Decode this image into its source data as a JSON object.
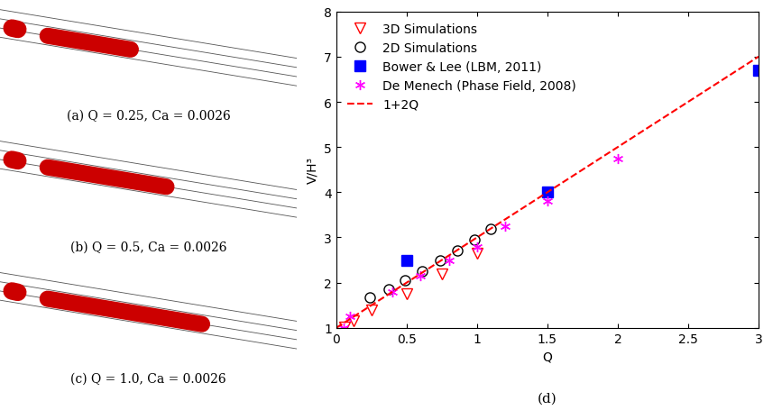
{
  "panels": [
    {
      "caption": "(a) Q = 0.25, Ca = 0.0026"
    },
    {
      "caption": "(b) Q = 0.5, Ca = 0.0026"
    },
    {
      "caption": "(c) Q = 1.0, Ca = 0.0026"
    }
  ],
  "chart_data": {
    "type": "scatter",
    "caption": "(d)",
    "x_label": "Q",
    "y_label": "V/H³",
    "xlim": [
      0,
      3
    ],
    "xticks": [
      0,
      0.5,
      1,
      1.5,
      2,
      2.5,
      3
    ],
    "ylim": [
      1,
      8
    ],
    "yticks": [
      1,
      2,
      3,
      4,
      5,
      6,
      7,
      8
    ],
    "legend": "upper left",
    "series": [
      {
        "name": "3D Simulations",
        "type": "scatter",
        "color": "#ff0000",
        "marker": "triangle_down",
        "x": [
          0.06,
          0.125,
          0.25,
          0.5,
          0.75,
          1.0
        ],
        "values": [
          1.02,
          1.15,
          1.4,
          1.75,
          2.2,
          2.65
        ]
      },
      {
        "name": "2D Simulations",
        "type": "scatter",
        "color": "#000000",
        "marker": "circle",
        "x": [
          0.24,
          0.37,
          0.49,
          0.61,
          0.74,
          0.86,
          0.98,
          1.1
        ],
        "values": [
          1.68,
          1.85,
          2.05,
          2.25,
          2.5,
          2.72,
          2.95,
          3.18
        ]
      },
      {
        "name": "Bower & Lee (LBM, 2011)",
        "type": "scatter",
        "color": "#0000ff",
        "marker": "square",
        "x": [
          0.5,
          1.5,
          3.0
        ],
        "values": [
          2.5,
          4.0,
          6.7
        ]
      },
      {
        "name": "De Menech (Phase Field, 2008)",
        "type": "scatter",
        "color": "#ff00ff",
        "marker": "asterisk",
        "x": [
          0.05,
          0.1,
          0.4,
          0.6,
          0.8,
          1.0,
          1.2,
          1.5,
          2.0
        ],
        "values": [
          1.0,
          1.25,
          1.8,
          2.15,
          2.5,
          2.8,
          3.25,
          3.8,
          4.75
        ]
      },
      {
        "name": "1+2Q",
        "type": "line",
        "color": "#ff0000",
        "line_style": "dashed",
        "x": [
          0,
          3
        ],
        "values": [
          1,
          7
        ]
      }
    ]
  }
}
